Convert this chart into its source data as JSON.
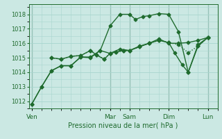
{
  "bg_color": "#cbe8e3",
  "grid_color": "#a8d5ce",
  "line_color": "#1f6b2e",
  "ylabel": "Pression niveau de la mer( hPa )",
  "ylim": [
    1011.5,
    1018.7
  ],
  "yticks": [
    1012,
    1013,
    1014,
    1015,
    1016,
    1017,
    1018
  ],
  "xtick_labels": [
    "Ven",
    "",
    "",
    "",
    "Mar",
    "Sam",
    "",
    "Dim",
    "",
    "Lun"
  ],
  "xtick_positions": [
    0,
    1,
    2,
    3,
    4,
    5,
    6,
    7,
    8,
    9
  ],
  "day_labels": [
    "Ven",
    "Mar",
    "Sam",
    "Dim",
    "Lun"
  ],
  "day_positions": [
    0,
    4,
    5,
    7,
    9
  ],
  "vlines": [
    0,
    4,
    5,
    7,
    9
  ],
  "lines": [
    {
      "x": [
        0,
        0.5,
        1.0,
        1.5,
        2.0,
        2.5,
        3.0,
        3.5,
        4.0,
        4.5,
        5.0,
        5.3,
        5.7,
        6.0,
        6.5,
        7.0,
        7.5,
        8.0,
        8.5,
        9.0
      ],
      "y": [
        1011.8,
        1013.0,
        1014.1,
        1014.45,
        1014.45,
        1015.05,
        1015.0,
        1015.5,
        1017.2,
        1018.0,
        1018.0,
        1017.65,
        1017.85,
        1017.9,
        1018.05,
        1018.0,
        1016.8,
        1014.0,
        1015.9,
        1016.4
      ],
      "marker": "D",
      "ms": 2.5,
      "lw": 1.0,
      "linestyle": "solid"
    },
    {
      "x": [
        0,
        0.5,
        1.0,
        1.5,
        2.0,
        2.5,
        3.0,
        3.5,
        4.0,
        4.5,
        5.0,
        5.5,
        6.0,
        6.5,
        7.0,
        7.5,
        8.0,
        8.5,
        9.0
      ],
      "y": [
        1011.8,
        1013.0,
        1014.1,
        1014.45,
        1014.45,
        1015.05,
        1015.05,
        1015.5,
        1015.3,
        1015.6,
        1015.5,
        1015.8,
        1016.0,
        1016.3,
        1016.0,
        1016.0,
        1016.05,
        1016.2,
        1016.4
      ],
      "marker": "D",
      "ms": 2.5,
      "lw": 1.0,
      "linestyle": "solid"
    },
    {
      "x": [
        1.0,
        1.5,
        2.0,
        2.5,
        3.0,
        3.3,
        3.7,
        4.0,
        4.3,
        4.7,
        5.0,
        5.5,
        6.0,
        6.5,
        7.0,
        7.5,
        8.0,
        8.5,
        9.0
      ],
      "y": [
        1015.0,
        1014.9,
        1015.1,
        1015.15,
        1015.5,
        1015.2,
        1014.9,
        1015.3,
        1015.4,
        1015.5,
        1015.5,
        1015.75,
        1016.0,
        1016.2,
        1016.05,
        1015.9,
        1015.35,
        1015.8,
        1016.4
      ],
      "marker": "D",
      "ms": 2.5,
      "lw": 1.0,
      "linestyle": "dotted"
    },
    {
      "x": [
        1.0,
        1.5,
        2.0,
        2.5,
        3.0,
        3.3,
        3.7,
        4.0,
        4.3,
        4.7,
        5.0,
        5.5,
        6.0,
        6.5,
        7.0,
        7.3,
        7.7,
        8.0,
        8.5,
        9.0
      ],
      "y": [
        1015.0,
        1014.9,
        1015.1,
        1015.15,
        1015.5,
        1015.2,
        1014.9,
        1015.3,
        1015.4,
        1015.5,
        1015.5,
        1015.75,
        1016.0,
        1016.2,
        1016.05,
        1015.35,
        1014.5,
        1014.0,
        1015.8,
        1016.4
      ],
      "marker": "D",
      "ms": 2.5,
      "lw": 1.0,
      "linestyle": "solid"
    }
  ],
  "figsize": [
    3.2,
    2.0
  ],
  "dpi": 100
}
